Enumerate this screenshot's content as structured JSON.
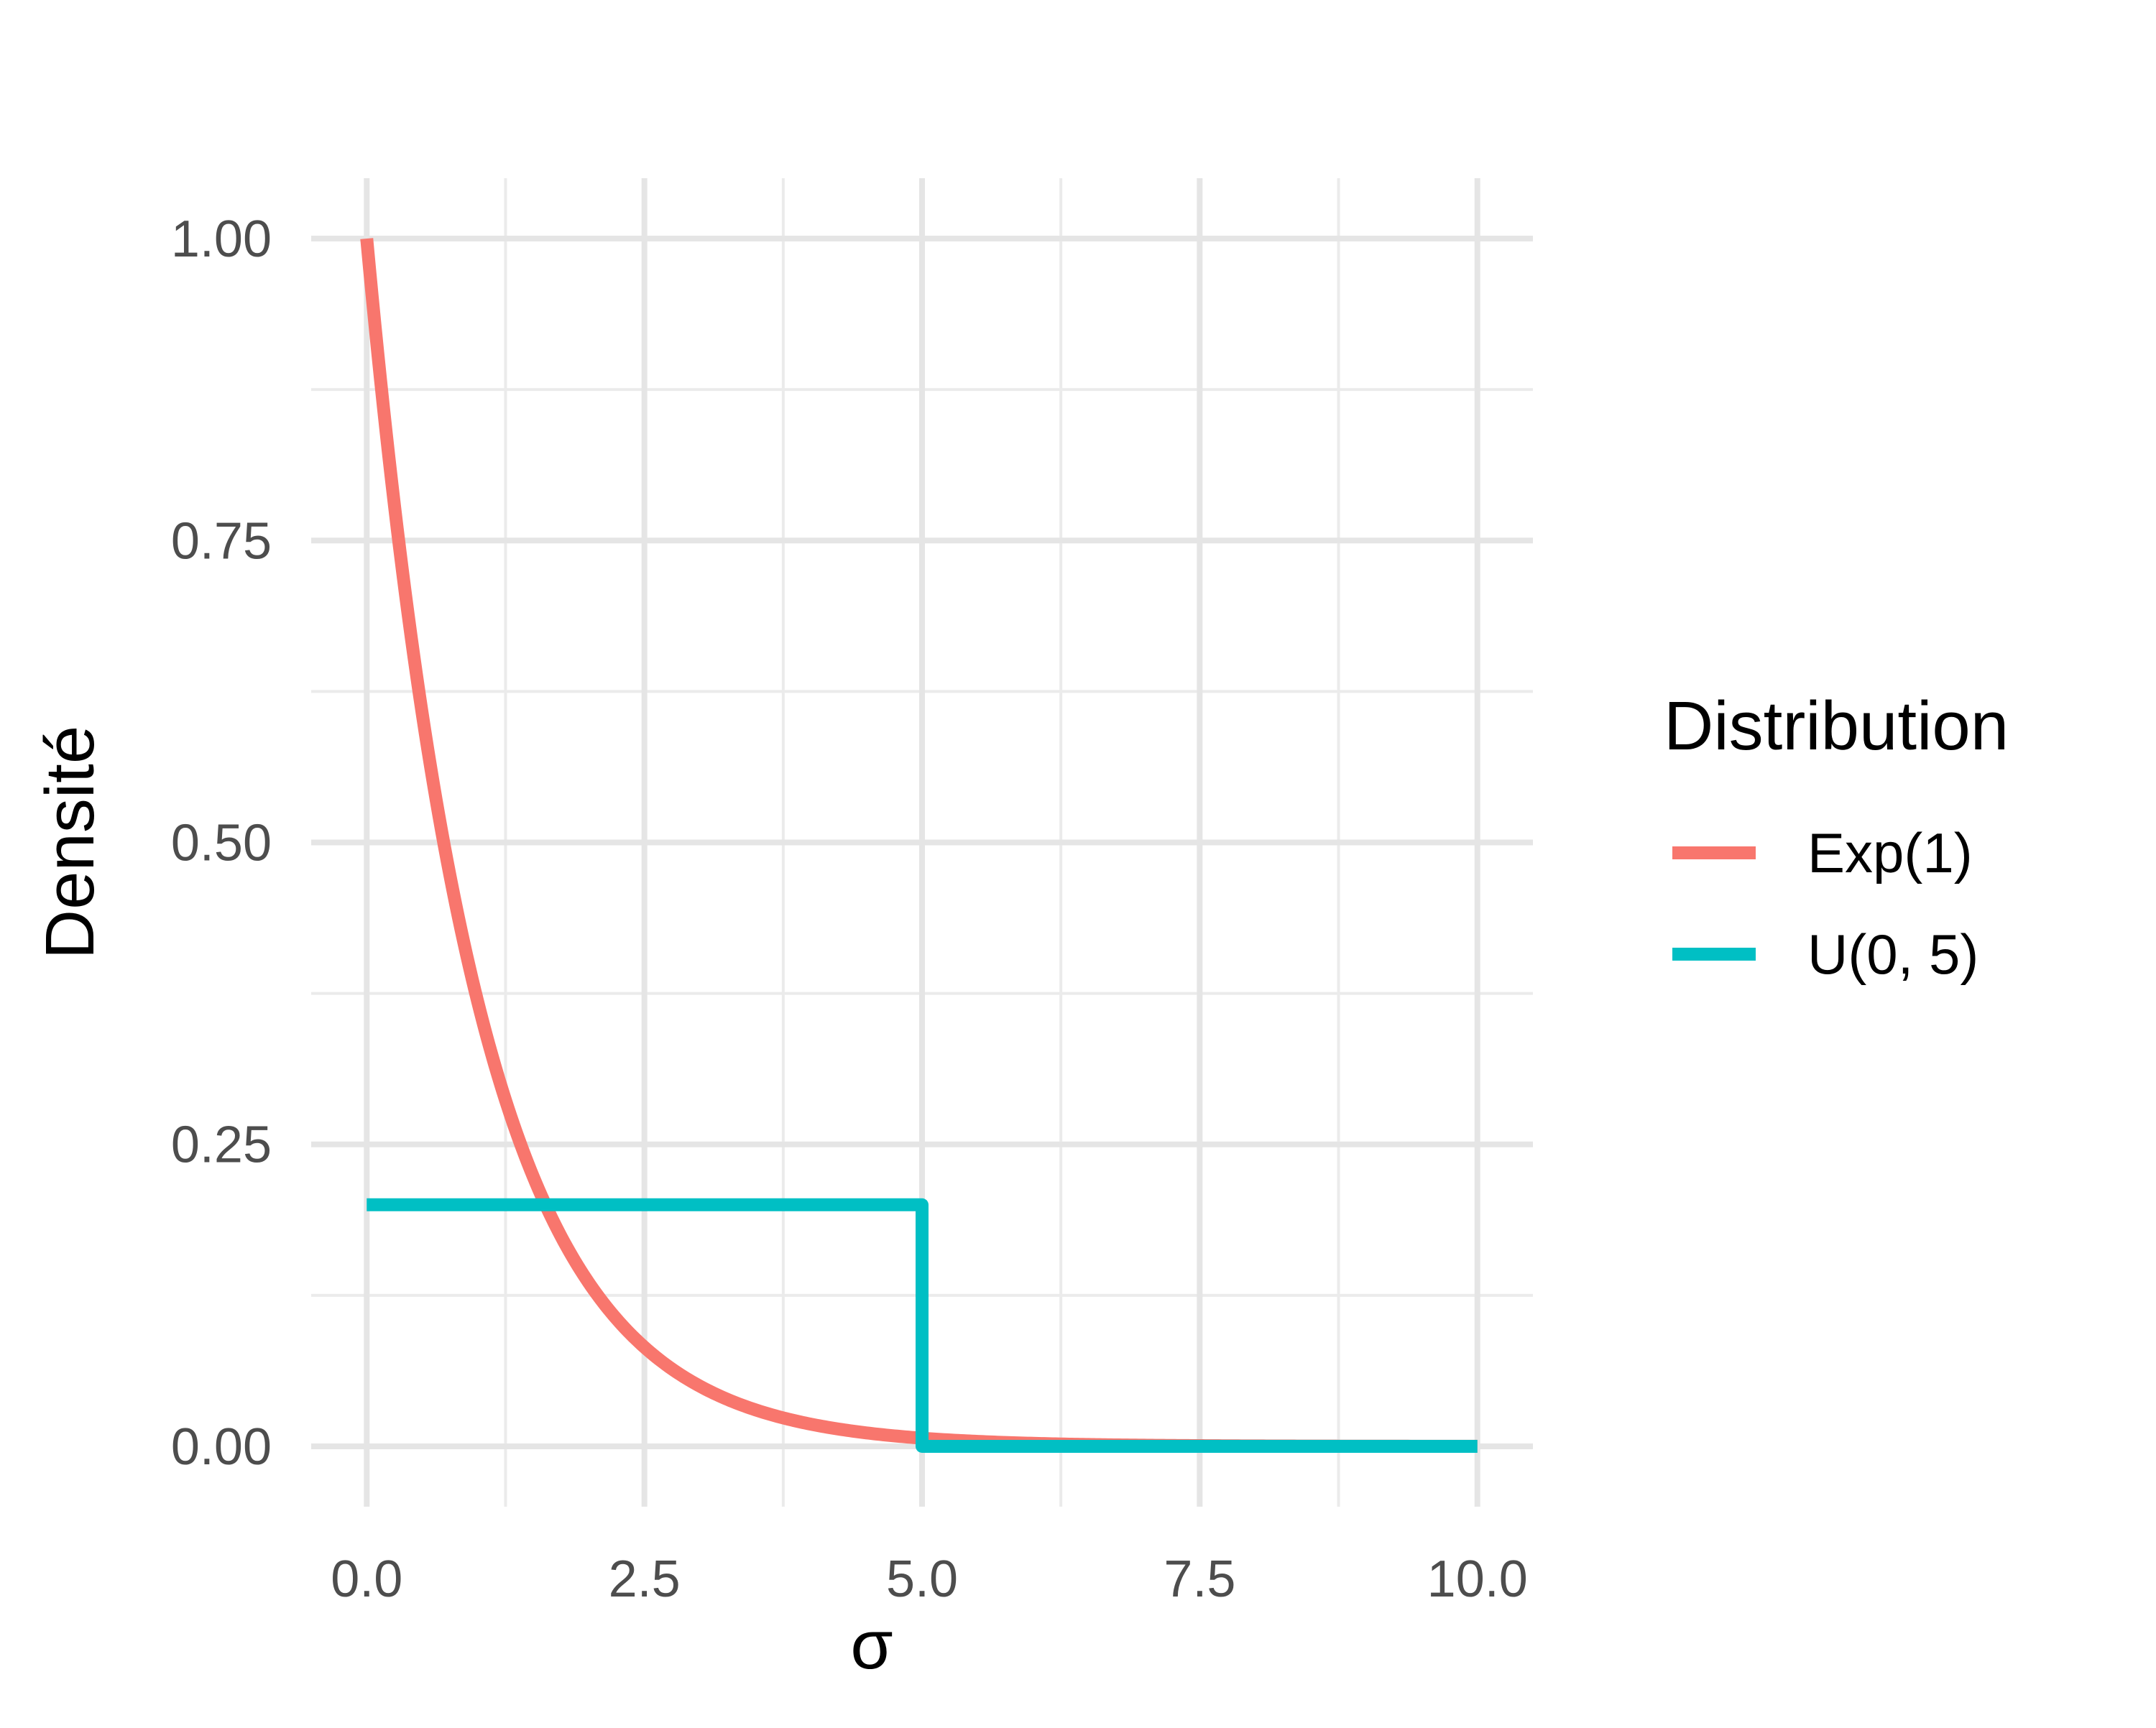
{
  "chart_data": {
    "type": "line",
    "xlabel": "σ",
    "ylabel": "Densité",
    "xlim": [
      -0.5,
      10.5
    ],
    "ylim": [
      -0.05,
      1.05
    ],
    "x_ticks": [
      0,
      2.5,
      5,
      7.5,
      10
    ],
    "x_tick_labels": [
      "0.0",
      "2.5",
      "5.0",
      "7.5",
      "10.0"
    ],
    "y_ticks": [
      0,
      0.25,
      0.5,
      0.75,
      1
    ],
    "y_tick_labels": [
      "0.00",
      "0.25",
      "0.50",
      "0.75",
      "1.00"
    ],
    "grid": true,
    "legend": {
      "title": "Distribution",
      "position": "right",
      "entries": [
        "Exp(1)",
        "U(0, 5)"
      ]
    },
    "series": [
      {
        "name": "Exp(1)",
        "color": "#F8766D",
        "x": [
          0,
          0.25,
          0.5,
          0.75,
          1,
          1.25,
          1.5,
          1.75,
          2,
          2.5,
          3,
          3.5,
          4,
          4.5,
          5,
          5.5,
          6,
          6.5,
          7,
          7.5,
          8,
          8.5,
          9,
          9.5,
          10
        ],
        "y": [
          1.0,
          0.779,
          0.607,
          0.472,
          0.368,
          0.287,
          0.223,
          0.174,
          0.135,
          0.082,
          0.05,
          0.03,
          0.018,
          0.011,
          0.007,
          0.004,
          0.002,
          0.002,
          0.001,
          0.001,
          0.0,
          0.0,
          0.0,
          0.0,
          0.0
        ]
      },
      {
        "name": "U(0, 5)",
        "color": "#00BFC4",
        "x": [
          0,
          5,
          5,
          10
        ],
        "y": [
          0.2,
          0.2,
          0,
          0
        ]
      }
    ]
  }
}
